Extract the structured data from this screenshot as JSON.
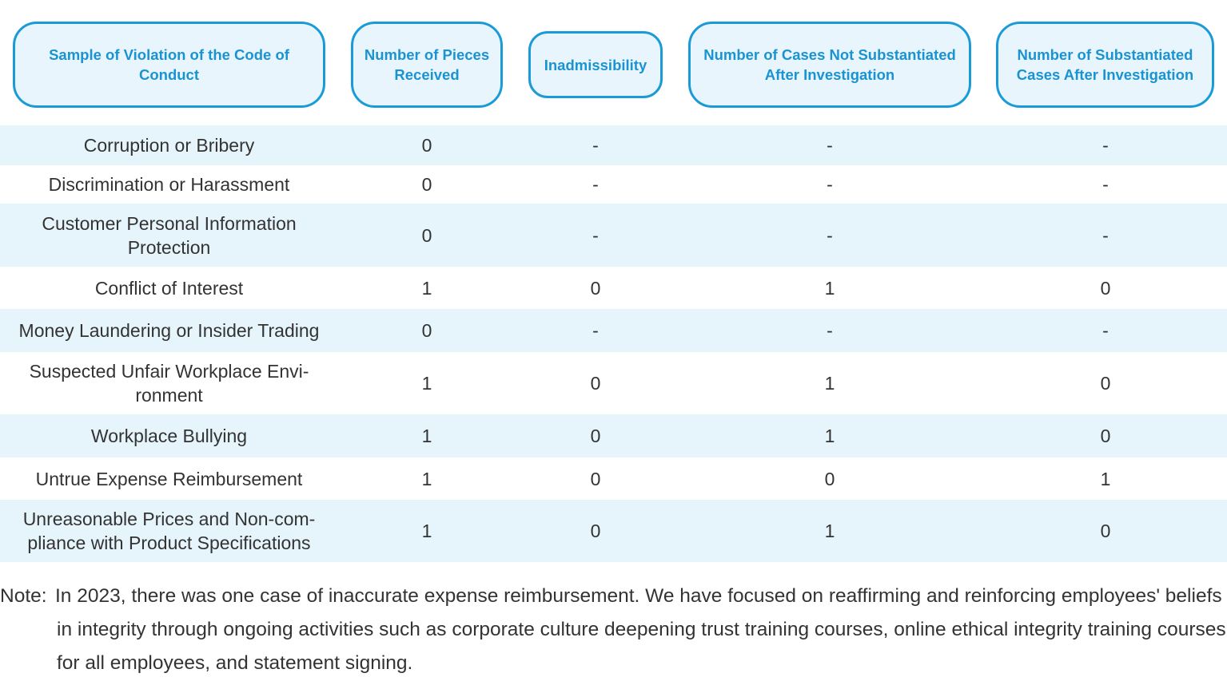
{
  "headers": [
    "Sample of Violation of the Code of Conduct",
    "Number of Pieces Received",
    "Inadmissibility",
    "Number of Cases Not Substantiated After Investigation",
    "Number of Substantiated Cases After Investigation"
  ],
  "rows": [
    {
      "category": "Corruption or Bribery",
      "received": "0",
      "inadmissibility": "-",
      "not_substantiated": "-",
      "substantiated": "-"
    },
    {
      "category": "Discrimination or Harassment",
      "received": "0",
      "inadmissibility": "-",
      "not_substantiated": "-",
      "substantiated": "-"
    },
    {
      "category": "Customer Personal Information Protection",
      "received": "0",
      "inadmissibility": "-",
      "not_substantiated": "-",
      "substantiated": "-"
    },
    {
      "category": "Conflict of Interest",
      "received": "1",
      "inadmissibility": "0",
      "not_substantiated": "1",
      "substantiated": "0"
    },
    {
      "category": "Money Laundering or Insider Trading",
      "received": "0",
      "inadmissibility": "-",
      "not_substantiated": "-",
      "substantiated": "-"
    },
    {
      "category": "Suspected Unfair Workplace Envi-ronment",
      "received": "1",
      "inadmissibility": "0",
      "not_substantiated": "1",
      "substantiated": "0"
    },
    {
      "category": "Workplace Bullying",
      "received": "1",
      "inadmissibility": "0",
      "not_substantiated": "1",
      "substantiated": "0"
    },
    {
      "category": "Untrue Expense Reimbursement",
      "received": "1",
      "inadmissibility": "0",
      "not_substantiated": "0",
      "substantiated": "1"
    },
    {
      "category": "Unreasonable Prices and Non-com-pliance with Product Specifications",
      "received": "1",
      "inadmissibility": "0",
      "not_substantiated": "1",
      "substantiated": "0"
    }
  ],
  "note": {
    "label": "Note:",
    "text": "In 2023, there was one case of inaccurate expense reimbursement. We have focused on reaffirming and reinforcing employees' beliefs in integrity through ongoing activities such as corporate culture deepening trust training courses, online ethical integrity training courses for all employees, and statement signing."
  },
  "colors": {
    "header_border": "#1a9bd7",
    "header_fill": "#e8f5fd",
    "header_text": "#1a93d2",
    "row_shade": "#e6f4fc",
    "body_text": "#333333"
  }
}
